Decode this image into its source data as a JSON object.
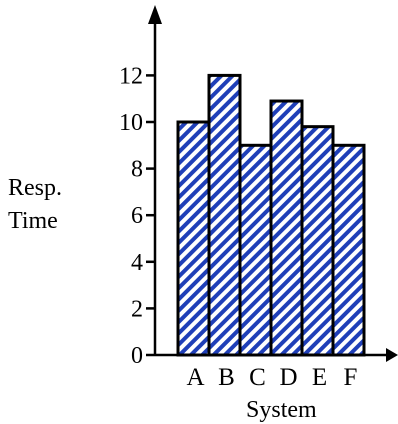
{
  "chart_data": {
    "type": "bar",
    "categories": [
      "A",
      "B",
      "C",
      "D",
      "E",
      "F"
    ],
    "values": [
      10,
      12,
      9,
      10.9,
      9.8,
      9
    ],
    "xlabel": "System",
    "ylabel_lines": [
      "Resp.",
      "Time"
    ],
    "ylim": [
      0,
      14
    ],
    "yticks": [
      0,
      2,
      4,
      6,
      8,
      10,
      12
    ],
    "grid": false,
    "bar_color": "#1f3fb8",
    "bar_fill": "diagonal-hatch"
  }
}
